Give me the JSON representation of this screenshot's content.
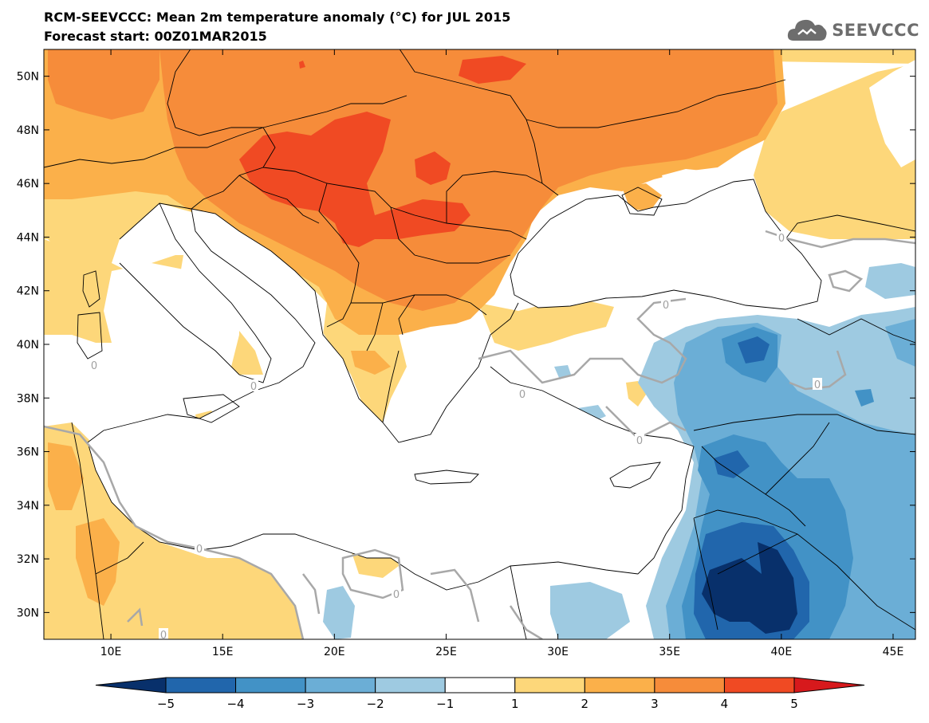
{
  "header": {
    "title": "RCM-SEEVCCC: Mean 2m temperature anomaly (°C) for JUL 2015",
    "subtitle": "Forecast start: 00Z01MAR2015",
    "logo_text": "SEEVCCC"
  },
  "map": {
    "lon_range": [
      7,
      46
    ],
    "lat_range": [
      29,
      51
    ],
    "lon_ticks": [
      {
        "value": 10,
        "label": "10E"
      },
      {
        "value": 15,
        "label": "15E"
      },
      {
        "value": 20,
        "label": "20E"
      },
      {
        "value": 25,
        "label": "25E"
      },
      {
        "value": 30,
        "label": "30E"
      },
      {
        "value": 35,
        "label": "35E"
      },
      {
        "value": 40,
        "label": "40E"
      },
      {
        "value": 45,
        "label": "45E"
      }
    ],
    "lat_ticks": [
      {
        "value": 50,
        "label": "50N"
      },
      {
        "value": 48,
        "label": "48N"
      },
      {
        "value": 46,
        "label": "46N"
      },
      {
        "value": 44,
        "label": "44N"
      },
      {
        "value": 42,
        "label": "42N"
      },
      {
        "value": 40,
        "label": "40N"
      },
      {
        "value": 38,
        "label": "38N"
      },
      {
        "value": 36,
        "label": "36N"
      },
      {
        "value": 34,
        "label": "34N"
      },
      {
        "value": 32,
        "label": "32N"
      },
      {
        "value": 30,
        "label": "30N"
      }
    ],
    "contour_label": "0"
  },
  "colorbar": {
    "labels": [
      "−5",
      "−4",
      "−3",
      "−2",
      "−1",
      "1",
      "2",
      "3",
      "4",
      "5"
    ],
    "colors": [
      "#08306b",
      "#2166ac",
      "#4292c6",
      "#6baed6",
      "#9ecae1",
      "#ffffff",
      "#fdd77a",
      "#fbb04a",
      "#f68c3a",
      "#f04a23",
      "#d7191c"
    ]
  }
}
